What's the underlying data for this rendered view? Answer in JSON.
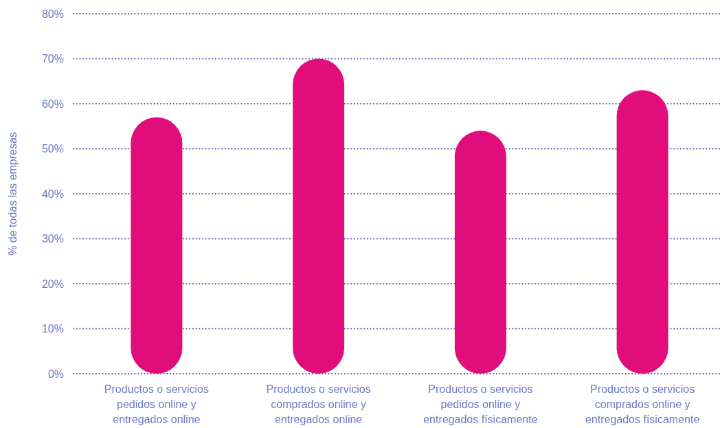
{
  "chart_data": {
    "type": "bar",
    "ylabel": "% de todas las empresas",
    "categories": [
      "Productos o servicios pedidos online y entregados online",
      "Productos o servicios comprados online y entregados online",
      "Productos o servicios pedidos online y entregados físicamente",
      "Productos o servicios comprados online y entregados físicamente"
    ],
    "values": [
      57,
      70,
      54,
      63
    ],
    "color": "#e00d7b",
    "ylim": [
      0,
      80
    ],
    "yticks": [
      {
        "value": 0,
        "label": "0%"
      },
      {
        "value": 10,
        "label": "10%"
      },
      {
        "value": 20,
        "label": "20%"
      },
      {
        "value": 30,
        "label": "30%"
      },
      {
        "value": 40,
        "label": "40%"
      },
      {
        "value": 50,
        "label": "50%"
      },
      {
        "value": 60,
        "label": "60%"
      },
      {
        "value": 70,
        "label": "70%"
      },
      {
        "value": 80,
        "label": "80%"
      }
    ],
    "grid": "y"
  }
}
